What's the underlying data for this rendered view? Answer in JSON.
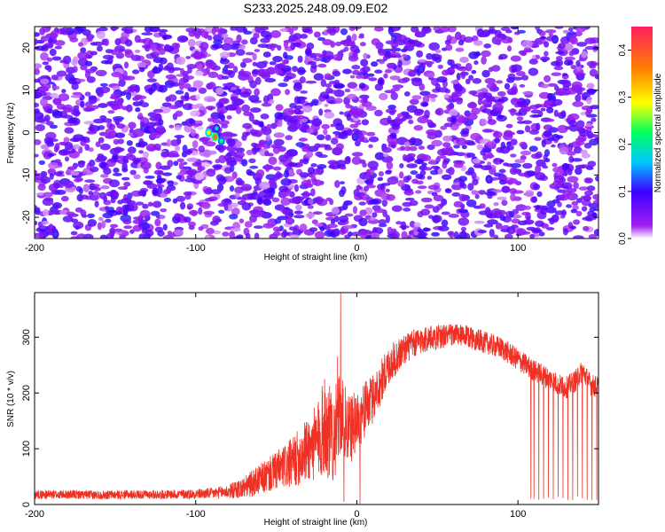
{
  "title": "S233.2025.248.09.09.E02",
  "colors": {
    "snr_line": "#ee3124",
    "axis": "#000000",
    "heatmap_background": "#ffffff",
    "colormap": [
      "#ffffff",
      "#a020f0",
      "#3c00ff",
      "#00c8ff",
      "#00ff60",
      "#ffff00",
      "#ff8000",
      "#ff2060"
    ]
  },
  "chart_data": [
    {
      "type": "heatmap",
      "title": "S233.2025.248.09.09.E02",
      "xlabel": "Height of straight line (km)",
      "ylabel": "Frequency (Hz)",
      "xlim": [
        -200,
        150
      ],
      "ylim": [
        -25,
        25
      ],
      "xticks": [
        "-200",
        "-100",
        "0",
        "100"
      ],
      "yticks": [
        "-20",
        "-10",
        "0",
        "10",
        "20"
      ],
      "colorbar": {
        "label": "Normalized spectral amplitude",
        "range": [
          0,
          0.45
        ],
        "ticks": [
          "0.0",
          "0.1",
          "0.2",
          "0.3",
          "0.4"
        ]
      },
      "texture": "dense speckle of violet/purple blobs across the full plane, mostly 0.05-0.15 normalized amplitude",
      "peaks": [
        {
          "x": -88,
          "y": -1,
          "value": 0.38
        },
        {
          "x": -92,
          "y": 0,
          "value": 0.3
        },
        {
          "x": -84,
          "y": -2,
          "value": 0.22
        },
        {
          "x": -87,
          "y": 1,
          "value": 0.18
        },
        {
          "x": -1,
          "y": -1,
          "value": 0.12
        },
        {
          "x": 40,
          "y": 15,
          "value": 0.12
        },
        {
          "x": 123,
          "y": 22,
          "value": 0.12
        },
        {
          "x": 82,
          "y": -11,
          "value": 0.12
        },
        {
          "x": -187,
          "y": -24,
          "value": 0.12
        },
        {
          "x": -150,
          "y": -6,
          "value": 0.1
        },
        {
          "x": -125,
          "y": -14,
          "value": 0.1
        },
        {
          "x": 15,
          "y": 12,
          "value": 0.1
        },
        {
          "x": -60,
          "y": -16,
          "value": 0.1
        },
        {
          "x": 60,
          "y": 3,
          "value": 0.1
        },
        {
          "x": -30,
          "y": 19,
          "value": 0.1
        }
      ]
    },
    {
      "type": "line",
      "xlabel": "Height of straight line (km)",
      "ylabel": "SNR (10 * v/v)",
      "xlim": [
        -200,
        150
      ],
      "ylim": [
        0,
        380
      ],
      "xticks": [
        "-200",
        "-100",
        "0",
        "100"
      ],
      "yticks": [
        "0",
        "100",
        "200",
        "300"
      ],
      "series": [
        {
          "x": [
            -200,
            -180,
            -160,
            -140,
            -120,
            -100,
            -90,
            -80,
            -70,
            -60,
            -50,
            -40,
            -30,
            -25,
            -20,
            -15,
            -10,
            -5,
            0,
            10,
            20,
            30,
            40,
            50,
            60,
            70,
            80,
            90,
            100,
            110,
            120,
            125,
            130,
            135,
            140,
            145,
            150
          ],
          "y": [
            18,
            18,
            17,
            18,
            18,
            19,
            20,
            23,
            30,
            45,
            60,
            75,
            100,
            110,
            140,
            120,
            160,
            130,
            150,
            190,
            250,
            280,
            295,
            300,
            305,
            300,
            290,
            280,
            260,
            240,
            225,
            215,
            210,
            220,
            240,
            215,
            210
          ],
          "spread": [
            16,
            16,
            16,
            16,
            16,
            18,
            20,
            25,
            40,
            55,
            70,
            90,
            120,
            140,
            180,
            170,
            150,
            130,
            110,
            90,
            70,
            55,
            50,
            45,
            40,
            40,
            40,
            40,
            40,
            40,
            40,
            40,
            40,
            40,
            40,
            40,
            40
          ]
        }
      ],
      "spikes": [
        {
          "x": -10,
          "y": 380
        },
        {
          "x": -12,
          "y": 265
        },
        {
          "x": -20,
          "y": 225
        },
        {
          "x": -30,
          "y": 130
        },
        {
          "x": -8,
          "y": 5
        },
        {
          "x": 2,
          "y": 0
        }
      ],
      "dropouts": [
        108,
        110,
        113,
        116,
        119,
        122,
        125,
        128,
        131,
        134,
        137,
        140,
        143,
        146,
        149
      ]
    }
  ]
}
